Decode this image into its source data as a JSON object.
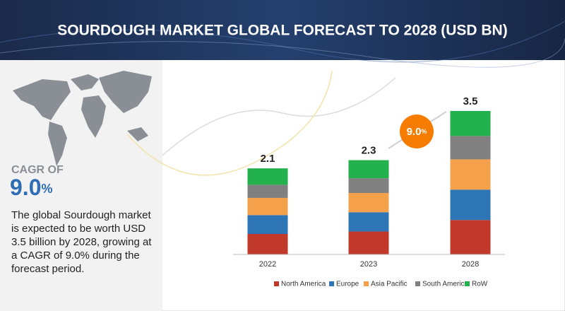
{
  "title": "SOURDOUGH MARKET GLOBAL FORECAST TO 2028 (USD BN)",
  "cagr_label": "CAGR OF",
  "cagr_value": "9.0",
  "cagr_unit": "%",
  "description": [
    "The global Sourdough market",
    "is expected to be worth USD",
    "3.5 billion by 2028, growing at",
    "a CAGR of 9.0% during the",
    "forecast period."
  ],
  "chart_data": {
    "type": "stacked_bar",
    "categories": [
      "2022",
      "2023",
      "2028"
    ],
    "totals": [
      2.1,
      2.3,
      3.5
    ],
    "series": [
      {
        "name": "North America",
        "color": "#c0392b",
        "values": [
          0.5,
          0.56,
          0.84
        ]
      },
      {
        "name": "Europe",
        "color": "#2e75b6",
        "values": [
          0.46,
          0.47,
          0.74
        ]
      },
      {
        "name": "Asia Pacific",
        "color": "#f5a04a",
        "values": [
          0.42,
          0.47,
          0.74
        ]
      },
      {
        "name": "South America",
        "color": "#808080",
        "values": [
          0.32,
          0.36,
          0.57
        ]
      },
      {
        "name": "RoW",
        "color": "#22b14c",
        "values": [
          0.4,
          0.44,
          0.61
        ]
      }
    ],
    "legend": "bottom"
  }
}
